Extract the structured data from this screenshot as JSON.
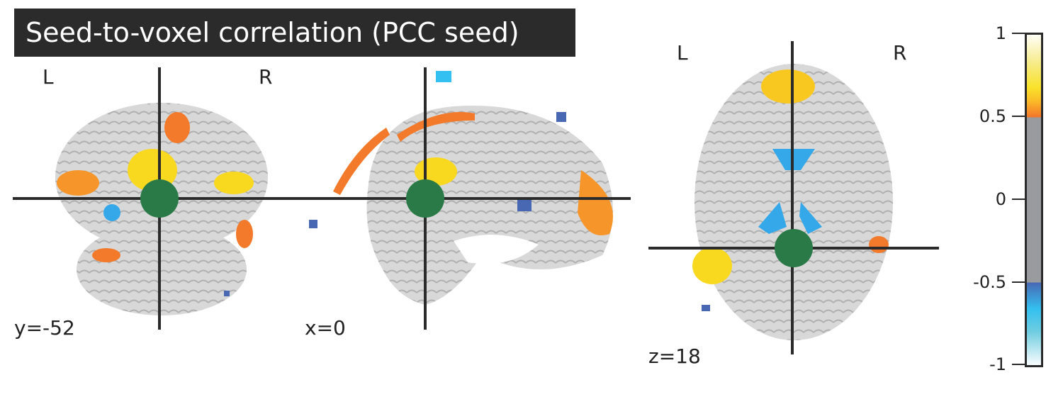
{
  "title": "Seed-to-voxel correlation (PCC seed)",
  "panels": [
    {
      "view": "coronal",
      "coord_label": "y=-52",
      "left": "L",
      "right": "R"
    },
    {
      "view": "sagittal",
      "coord_label": "x=0"
    },
    {
      "view": "axial",
      "coord_label": "z=18",
      "left": "L",
      "right": "R"
    }
  ],
  "colorbar": {
    "ticks": [
      "1",
      "0.5",
      "0",
      "-0.5",
      "-1"
    ],
    "range": [
      -1,
      1
    ],
    "threshold": 0.5,
    "colors": {
      "positive": "#f26a2a",
      "peak": "#f9e22a",
      "negative": "#4868b4",
      "neg_light": "#34c0f0",
      "neutral": "#9a9b9e"
    }
  },
  "seed_marker_color": "#2a7a48",
  "crosshair_color": "#2b2b2b"
}
